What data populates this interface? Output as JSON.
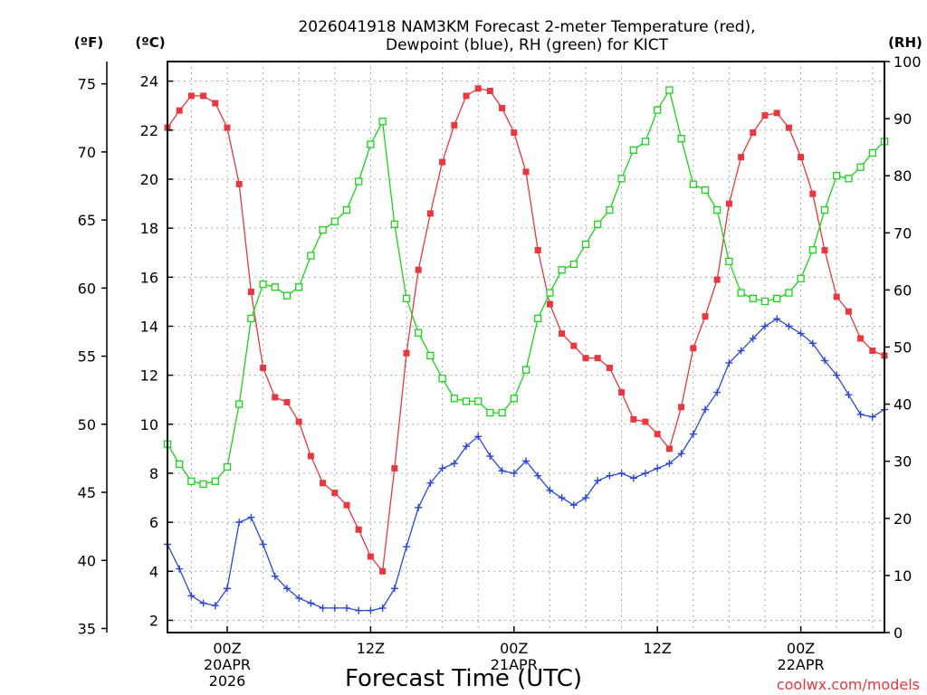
{
  "chart_data": {
    "type": "line",
    "title_lines": [
      "2026041918 NAM3KM Forecast 2-meter Temperature (red),",
      "Dewpoint (blue), RH (green) for KICT"
    ],
    "xlabel": "Forecast Time (UTC)",
    "credit": "coolwx.com/models",
    "left_axis_f_label": "(ºF)",
    "left_axis_c_label": "(ºC)",
    "right_axis_label": "(RH)",
    "x_units": "forecast hour offset from 2026041918 UTC",
    "xlim": [
      1,
      61
    ],
    "x_ticks": [
      {
        "x": 6,
        "lines": [
          "00Z",
          "20APR",
          "2026"
        ]
      },
      {
        "x": 18,
        "lines": [
          "12Z"
        ]
      },
      {
        "x": 30,
        "lines": [
          "00Z",
          "21APR"
        ]
      },
      {
        "x": 42,
        "lines": [
          "12Z"
        ]
      },
      {
        "x": 54,
        "lines": [
          "00Z",
          "22APR"
        ]
      }
    ],
    "ylim_c": [
      1.5,
      24.8
    ],
    "y_ticks_c": [
      2,
      4,
      6,
      8,
      10,
      12,
      14,
      16,
      18,
      20,
      22,
      24
    ],
    "ylim_f": [
      34.7,
      76.64
    ],
    "y_ticks_f": [
      35,
      40,
      45,
      50,
      55,
      60,
      65,
      70,
      75
    ],
    "ylim_rh": [
      0,
      100
    ],
    "y_ticks_rh": [
      0,
      10,
      20,
      30,
      40,
      50,
      60,
      70,
      80,
      90,
      100
    ],
    "grid": true,
    "series": [
      {
        "name": "2-meter Temperature",
        "axis": "c",
        "color": "#e8373e",
        "marker": "filled-square",
        "x": [
          1,
          2,
          3,
          4,
          5,
          6,
          7,
          8,
          9,
          10,
          11,
          12,
          13,
          14,
          15,
          16,
          17,
          18,
          19,
          20,
          21,
          22,
          23,
          24,
          25,
          26,
          27,
          28,
          29,
          30,
          31,
          32,
          33,
          34,
          35,
          36,
          37,
          38,
          39,
          40,
          41,
          42,
          43,
          44,
          45,
          46,
          47,
          48,
          49,
          50,
          51,
          52,
          53,
          54,
          55,
          56,
          57,
          58,
          59,
          60,
          61
        ],
        "values": [
          22.1,
          22.8,
          23.4,
          23.4,
          23.1,
          22.1,
          19.8,
          15.4,
          12.3,
          11.1,
          10.9,
          10.1,
          8.7,
          7.6,
          7.2,
          6.7,
          5.7,
          4.6,
          4.0,
          8.2,
          12.9,
          16.3,
          18.6,
          20.7,
          22.2,
          23.4,
          23.7,
          23.6,
          22.9,
          21.9,
          20.3,
          17.1,
          14.9,
          13.7,
          13.2,
          12.7,
          12.7,
          12.3,
          11.3,
          10.2,
          10.1,
          9.6,
          9.0,
          10.7,
          13.1,
          14.4,
          15.9,
          19.0,
          20.9,
          21.9,
          22.6,
          22.7,
          22.1,
          20.9,
          19.4,
          17.1,
          15.2,
          14.6,
          13.5,
          13.0,
          12.8
        ]
      },
      {
        "name": "Dewpoint",
        "axis": "c",
        "color": "#2b47d8",
        "marker": "plus",
        "x": [
          1,
          2,
          3,
          4,
          5,
          6,
          7,
          8,
          9,
          10,
          11,
          12,
          13,
          14,
          15,
          16,
          17,
          18,
          19,
          20,
          21,
          22,
          23,
          24,
          25,
          26,
          27,
          28,
          29,
          30,
          31,
          32,
          33,
          34,
          35,
          36,
          37,
          38,
          39,
          40,
          41,
          42,
          43,
          44,
          45,
          46,
          47,
          48,
          49,
          50,
          51,
          52,
          53,
          54,
          55,
          56,
          57,
          58,
          59,
          60,
          61
        ],
        "values": [
          5.1,
          4.1,
          3.0,
          2.7,
          2.6,
          3.3,
          6.0,
          6.2,
          5.1,
          3.8,
          3.3,
          2.9,
          2.7,
          2.5,
          2.5,
          2.5,
          2.4,
          2.4,
          2.5,
          3.3,
          5.0,
          6.6,
          7.6,
          8.2,
          8.4,
          9.1,
          9.5,
          8.7,
          8.1,
          8.0,
          8.5,
          7.9,
          7.3,
          7.0,
          6.7,
          7.0,
          7.7,
          7.9,
          8.0,
          7.8,
          8.0,
          8.2,
          8.4,
          8.8,
          9.6,
          10.6,
          11.3,
          12.5,
          13.0,
          13.5,
          14.0,
          14.3,
          14.0,
          13.7,
          13.3,
          12.6,
          12.0,
          11.2,
          10.4,
          10.3,
          10.6
        ]
      },
      {
        "name": "RH",
        "axis": "rh",
        "color": "#1ad31a",
        "marker": "open-square",
        "x": [
          1,
          2,
          3,
          4,
          5,
          6,
          7,
          8,
          9,
          10,
          11,
          12,
          13,
          14,
          15,
          16,
          17,
          18,
          19,
          20,
          21,
          22,
          23,
          24,
          25,
          26,
          27,
          28,
          29,
          30,
          31,
          32,
          33,
          34,
          35,
          36,
          37,
          38,
          39,
          40,
          41,
          42,
          43,
          44,
          45,
          46,
          47,
          48,
          49,
          50,
          51,
          52,
          53,
          54,
          55,
          56,
          57,
          58,
          59,
          60,
          61
        ],
        "values": [
          33,
          29.5,
          26.5,
          26,
          26.5,
          29,
          40,
          55,
          61,
          60.5,
          59,
          60.5,
          66,
          70.5,
          72,
          74,
          79,
          85.5,
          89.5,
          71.5,
          58.5,
          52.5,
          48.5,
          44.5,
          41,
          40.5,
          40.5,
          38.5,
          38.5,
          41,
          46,
          55,
          59.5,
          63.5,
          64.5,
          68,
          71.5,
          74,
          79.5,
          84.5,
          86,
          91.5,
          95,
          86.5,
          78.5,
          77.5,
          74,
          65,
          59.5,
          58.5,
          58,
          58.5,
          59.5,
          62,
          67,
          74,
          80,
          79.5,
          81.5,
          84,
          86
        ]
      }
    ]
  }
}
